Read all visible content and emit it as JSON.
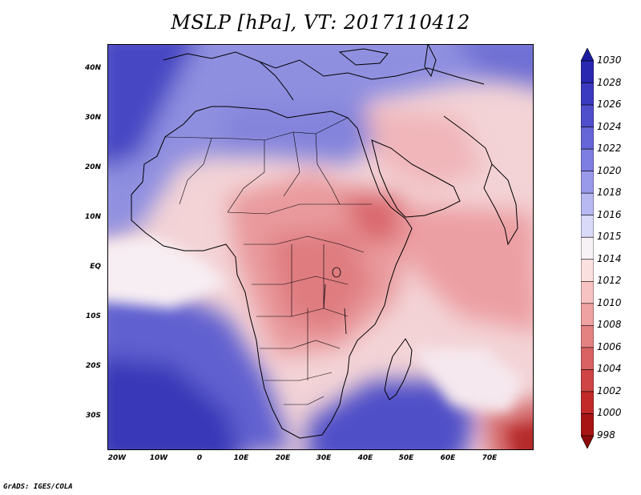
{
  "title": "MSLP [hPa], VT: 2017110412",
  "credit": "GrADS: IGES/COLA",
  "map": {
    "projection": "lat-lon",
    "lon_range": [
      -25,
      80
    ],
    "lat_range": [
      -37,
      45
    ],
    "y_labels": [
      "40N",
      "30N",
      "20N",
      "10N",
      "EQ",
      "10S",
      "20S",
      "30S"
    ],
    "x_labels": [
      "20W",
      "10W",
      "0",
      "10E",
      "20E",
      "30E",
      "40E",
      "50E",
      "60E",
      "70E"
    ]
  },
  "colorbar": {
    "orientation": "vertical",
    "levels": [
      "1030",
      "1028",
      "1026",
      "1024",
      "1022",
      "1020",
      "1018",
      "1016",
      "1015",
      "1014",
      "1012",
      "1010",
      "1008",
      "1006",
      "1004",
      "1002",
      "1000",
      "998"
    ],
    "colors": [
      "#1a1aa0",
      "#2828b0",
      "#3a3ac0",
      "#4f4fcc",
      "#6666d8",
      "#7e7ee2",
      "#9a9aea",
      "#b8b8f2",
      "#d9d9f8",
      "#f6f2f6",
      "#fbe0e0",
      "#f6c2c2",
      "#eea2a2",
      "#e48282",
      "#da6262",
      "#cf4444",
      "#c22a2a",
      "#a81414",
      "#8c0a0a"
    ]
  }
}
